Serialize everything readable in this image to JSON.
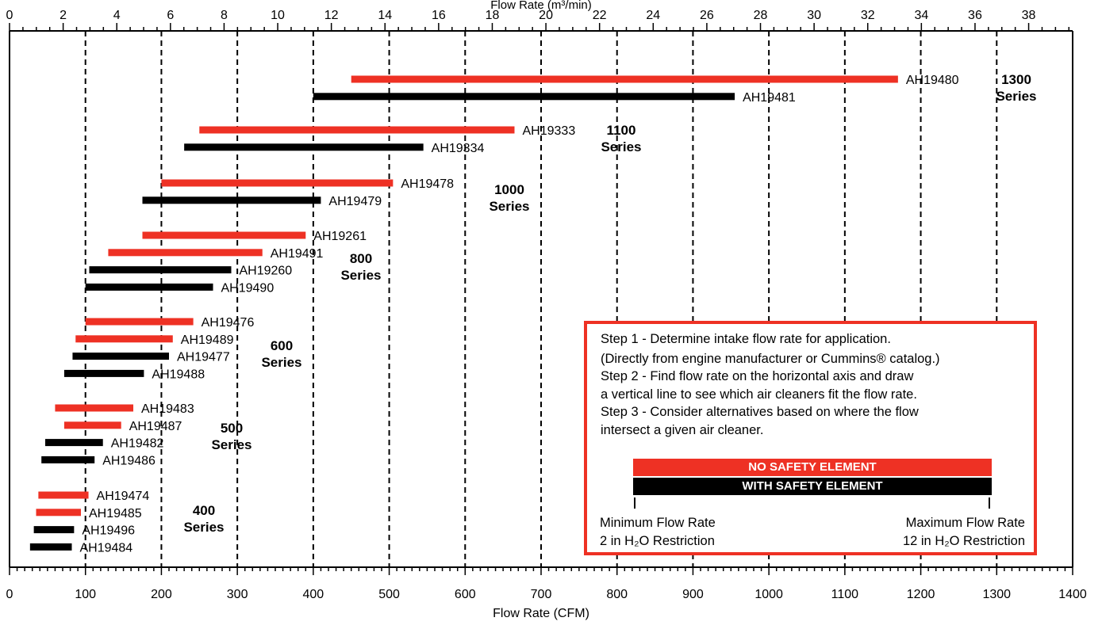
{
  "chart_data": {
    "type": "bar",
    "subtype": "floating-range",
    "xlabel_top": "Flow Rate (m³/min)",
    "xlabel": "Flow Rate (CFM)",
    "x_cfm_range": [
      0,
      1400
    ],
    "x_cfm_ticks": [
      0,
      100,
      200,
      300,
      400,
      500,
      600,
      700,
      800,
      900,
      1000,
      1100,
      1200,
      1300,
      1400
    ],
    "x_m3min_range": [
      0,
      39.64
    ],
    "x_m3min_ticks": [
      0,
      2,
      4,
      6,
      8,
      10,
      12,
      14,
      16,
      18,
      20,
      22,
      24,
      26,
      28,
      30,
      32,
      34,
      36,
      38
    ],
    "grid": "dashed vertical lines every 100 CFM",
    "colors": {
      "no_safety": "#ee3124",
      "with_safety": "#000000"
    },
    "groups": [
      {
        "label1": "1300",
        "label2": "Series",
        "bars": [
          {
            "label": "AH19480",
            "safety": false,
            "min": 450,
            "max": 1170
          },
          {
            "label": "AH19481",
            "safety": true,
            "min": 400,
            "max": 955
          }
        ]
      },
      {
        "label1": "1100",
        "label2": "Series",
        "bars": [
          {
            "label": "AH19333",
            "safety": false,
            "min": 250,
            "max": 665
          },
          {
            "label": "AH19334",
            "safety": true,
            "min": 230,
            "max": 545
          }
        ]
      },
      {
        "label1": "1000",
        "label2": "Series",
        "bars": [
          {
            "label": "AH19478",
            "safety": false,
            "min": 200,
            "max": 505
          },
          {
            "label": "AH19479",
            "safety": true,
            "min": 175,
            "max": 410
          }
        ]
      },
      {
        "label1": "800",
        "label2": "Series",
        "bars": [
          {
            "label": "AH19261",
            "safety": false,
            "min": 175,
            "max": 390
          },
          {
            "label": "AH19491",
            "safety": false,
            "min": 130,
            "max": 333
          },
          {
            "label": "AH19260",
            "safety": true,
            "min": 105,
            "max": 292
          },
          {
            "label": "AH19490",
            "safety": true,
            "min": 100,
            "max": 268
          }
        ]
      },
      {
        "label1": "600",
        "label2": "Series",
        "bars": [
          {
            "label": "AH19476",
            "safety": false,
            "min": 100,
            "max": 242
          },
          {
            "label": "AH19489",
            "safety": false,
            "min": 87,
            "max": 215
          },
          {
            "label": "AH19477",
            "safety": true,
            "min": 83,
            "max": 210
          },
          {
            "label": "AH19488",
            "safety": true,
            "min": 72,
            "max": 177
          }
        ]
      },
      {
        "label1": "500",
        "label2": "Series",
        "bars": [
          {
            "label": "AH19483",
            "safety": false,
            "min": 60,
            "max": 163
          },
          {
            "label": "AH19487",
            "safety": false,
            "min": 72,
            "max": 147
          },
          {
            "label": "AH19482",
            "safety": true,
            "min": 47,
            "max": 123
          },
          {
            "label": "AH19486",
            "safety": true,
            "min": 42,
            "max": 112
          }
        ]
      },
      {
        "label1": "400",
        "label2": "Series",
        "bars": [
          {
            "label": "AH19474",
            "safety": false,
            "min": 38,
            "max": 104
          },
          {
            "label": "AH19485",
            "safety": false,
            "min": 35,
            "max": 94
          },
          {
            "label": "AH19496",
            "safety": true,
            "min": 32,
            "max": 85
          },
          {
            "label": "AH19484",
            "safety": true,
            "min": 27,
            "max": 82
          }
        ]
      }
    ]
  },
  "steps": {
    "line1": "Step 1 - Determine intake flow rate for application.",
    "line2": "(Directly from engine manufacturer or Cummins® catalog.)",
    "line3": "Step 2 - Find flow rate on the horizontal axis and draw",
    "line4": "a vertical line to see which air cleaners fit the flow rate.",
    "line5": "Step 3 - Consider alternatives based on where the flow",
    "line6": "intersect a given air cleaner."
  },
  "legend": {
    "no_safety": "NO SAFETY ELEMENT",
    "with_safety": "WITH SAFETY ELEMENT",
    "min_title": "Minimum Flow Rate",
    "min_restriction": "2 in H₂O Restriction",
    "max_title": "Maximum Flow Rate",
    "max_restriction": "12 in H₂O Restriction"
  }
}
